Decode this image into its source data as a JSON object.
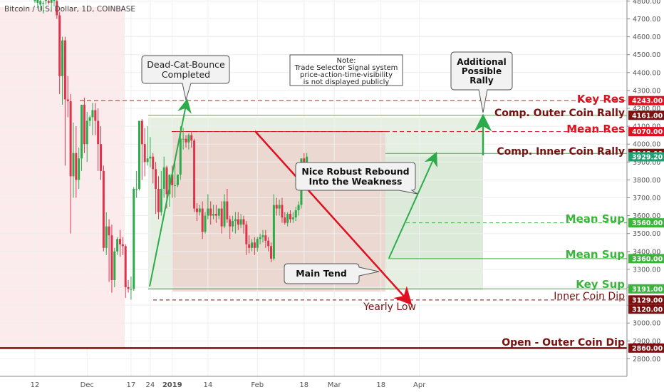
{
  "header": {
    "title": "Bitcoin / U.S. Dollar, 1D, COINBASE"
  },
  "chart_data": {
    "type": "candlestick",
    "ylim": [
      2700,
      4830
    ],
    "y_ticks": [
      2800,
      2900,
      3000,
      3100,
      3200,
      3300,
      3400,
      3500,
      3600,
      3700,
      3800,
      3900,
      4000,
      4100,
      4200,
      4300,
      4400,
      4500,
      4600,
      4700,
      4800
    ],
    "y_tick_labels": [
      "2800.00",
      "2900.00",
      "3000.00",
      "3100.00",
      "3200.00",
      "3300.00",
      "3400.00",
      "3500.00",
      "3600.00",
      "3700.00",
      "3800.00",
      "3900.00",
      "4000.00",
      "4100.00",
      "4200.00",
      "4300.00",
      "4400.00",
      "4500.00",
      "4600.00",
      "4700.00",
      "4800.00"
    ],
    "x_ticks": [
      {
        "label": "12",
        "day": 0
      },
      {
        "label": "Dec",
        "day": 19
      },
      {
        "label": "17",
        "day": 35
      },
      {
        "label": "24",
        "day": 42
      },
      {
        "label": "2019",
        "day": 50
      },
      {
        "label": "14",
        "day": 63
      },
      {
        "label": "Feb",
        "day": 81
      },
      {
        "label": "18",
        "day": 98
      },
      {
        "label": "Mar",
        "day": 109
      },
      {
        "label": "18",
        "day": 126
      },
      {
        "label": "Apr",
        "day": 140
      }
    ],
    "candles": [
      [
        0,
        4800,
        4830,
        4820,
        4790
      ],
      [
        1,
        4790,
        4830,
        4810,
        4760
      ],
      [
        2,
        4780,
        4820,
        4800,
        4750
      ],
      [
        3,
        4790,
        4800,
        4790,
        4730
      ],
      [
        4,
        4800,
        4830,
        4810,
        4780
      ],
      [
        5,
        4800,
        4820,
        4790,
        4780
      ],
      [
        6,
        4790,
        4820,
        4810,
        4740
      ],
      [
        7,
        4800,
        4830,
        4810,
        4770
      ],
      [
        8,
        4800,
        4820,
        4720,
        4700
      ],
      [
        9,
        4720,
        4740,
        4380,
        4280
      ],
      [
        10,
        4380,
        4600,
        4580,
        4220
      ],
      [
        11,
        4580,
        4600,
        4250,
        3880
      ],
      [
        12,
        4250,
        4380,
        4240,
        4150
      ],
      [
        13,
        4240,
        4280,
        3820,
        3500
      ],
      [
        14,
        3820,
        4120,
        3950,
        3700
      ],
      [
        15,
        3950,
        4100,
        3800,
        3700
      ],
      [
        16,
        3800,
        3980,
        3920,
        3750
      ],
      [
        17,
        3920,
        4180,
        4220,
        3850
      ],
      [
        18,
        4220,
        4260,
        4000,
        3950
      ],
      [
        19,
        4000,
        4180,
        4130,
        3900
      ],
      [
        20,
        4130,
        4160,
        4150,
        4100
      ],
      [
        21,
        4150,
        4230,
        4190,
        4050
      ],
      [
        22,
        4190,
        4230,
        4130,
        4050
      ],
      [
        23,
        4130,
        4200,
        4000,
        3850
      ],
      [
        24,
        4000,
        4100,
        3850,
        3800
      ],
      [
        25,
        3850,
        3880,
        3420,
        3400
      ],
      [
        26,
        3420,
        3620,
        3540,
        3380
      ],
      [
        27,
        3540,
        3580,
        3490,
        3230
      ],
      [
        28,
        3490,
        3550,
        3240,
        3170
      ],
      [
        29,
        3240,
        3420,
        3400,
        3200
      ],
      [
        30,
        3400,
        3480,
        3470,
        3380
      ],
      [
        31,
        3470,
        3520,
        3440,
        3370
      ],
      [
        32,
        3440,
        3480,
        3430,
        3380
      ],
      [
        33,
        3430,
        3440,
        3200,
        3140
      ],
      [
        34,
        3200,
        3240,
        3190,
        3170
      ],
      [
        35,
        3190,
        3260,
        3190,
        3130
      ],
      [
        36,
        3190,
        3760,
        3750,
        3180
      ],
      [
        37,
        3750,
        3850,
        3750,
        3700
      ],
      [
        38,
        3750,
        4120,
        4130,
        3740
      ],
      [
        39,
        4130,
        4140,
        4000,
        3800
      ],
      [
        40,
        4000,
        4090,
        3900,
        3820
      ],
      [
        41,
        3900,
        4100,
        3920,
        3880
      ],
      [
        42,
        3920,
        4040,
        3930,
        3870
      ],
      [
        43,
        3930,
        3950,
        3860,
        3780
      ],
      [
        44,
        3860,
        3900,
        3750,
        3610
      ],
      [
        45,
        3750,
        3820,
        3620,
        3580
      ],
      [
        46,
        3620,
        3850,
        3750,
        3600
      ],
      [
        47,
        3750,
        3930,
        3870,
        3700
      ],
      [
        48,
        3870,
        3880,
        3720,
        3640
      ],
      [
        49,
        3720,
        3830,
        3830,
        3650
      ],
      [
        50,
        3830,
        3880,
        3770,
        3700
      ],
      [
        51,
        3770,
        3900,
        3770,
        3700
      ],
      [
        52,
        3770,
        3830,
        3830,
        3760
      ],
      [
        53,
        3830,
        4100,
        4030,
        3800
      ],
      [
        54,
        4030,
        4090,
        4030,
        3970
      ],
      [
        55,
        4030,
        4050,
        4010,
        3980
      ],
      [
        56,
        4010,
        4060,
        4050,
        3970
      ],
      [
        57,
        4050,
        4070,
        4020,
        3980
      ],
      [
        58,
        4020,
        4030,
        3640,
        3620
      ],
      [
        59,
        3640,
        3670,
        3620,
        3570
      ],
      [
        60,
        3620,
        3660,
        3640,
        3600
      ],
      [
        61,
        3640,
        3680,
        3510,
        3470
      ],
      [
        62,
        3510,
        3620,
        3600,
        3500
      ],
      [
        63,
        3600,
        3720,
        3640,
        3580
      ],
      [
        64,
        3640,
        3680,
        3600,
        3550
      ],
      [
        65,
        3600,
        3660,
        3610,
        3580
      ],
      [
        66,
        3610,
        3660,
        3600,
        3560
      ],
      [
        67,
        3600,
        3640,
        3640,
        3580
      ],
      [
        68,
        3640,
        3680,
        3540,
        3500
      ],
      [
        69,
        3540,
        3720,
        3680,
        3530
      ],
      [
        70,
        3680,
        3750,
        3580,
        3560
      ],
      [
        71,
        3580,
        3600,
        3540,
        3470
      ],
      [
        72,
        3540,
        3600,
        3570,
        3510
      ],
      [
        73,
        3570,
        3620,
        3580,
        3500
      ],
      [
        74,
        3580,
        3620,
        3550,
        3520
      ],
      [
        75,
        3550,
        3610,
        3580,
        3530
      ],
      [
        76,
        3580,
        3600,
        3550,
        3500
      ],
      [
        77,
        3550,
        3570,
        3440,
        3380
      ],
      [
        78,
        3440,
        3490,
        3420,
        3390
      ],
      [
        79,
        3420,
        3470,
        3450,
        3400
      ],
      [
        80,
        3450,
        3480,
        3420,
        3380
      ],
      [
        81,
        3420,
        3480,
        3470,
        3400
      ],
      [
        82,
        3470,
        3500,
        3480,
        3440
      ],
      [
        83,
        3480,
        3520,
        3490,
        3450
      ],
      [
        84,
        3490,
        3520,
        3460,
        3420
      ],
      [
        85,
        3460,
        3480,
        3430,
        3400
      ],
      [
        86,
        3430,
        3450,
        3360,
        3340
      ],
      [
        87,
        3360,
        3720,
        3660,
        3350
      ],
      [
        88,
        3660,
        3700,
        3640,
        3600
      ],
      [
        89,
        3640,
        3690,
        3660,
        3600
      ],
      [
        90,
        3660,
        3700,
        3590,
        3560
      ],
      [
        91,
        3590,
        3620,
        3560,
        3550
      ],
      [
        92,
        3560,
        3620,
        3610,
        3540
      ],
      [
        93,
        3610,
        3630,
        3580,
        3560
      ],
      [
        94,
        3580,
        3620,
        3590,
        3560
      ],
      [
        95,
        3590,
        3650,
        3630,
        3570
      ],
      [
        96,
        3630,
        3680,
        3660,
        3600
      ],
      [
        97,
        3660,
        3920,
        3920,
        3640
      ],
      [
        98,
        3920,
        3950,
        3900,
        3860
      ],
      [
        99,
        3900,
        3950,
        3930,
        3880
      ]
    ]
  },
  "levels": {
    "key_res": {
      "label": "Key Res",
      "price_label": "4243.00",
      "value": 4243
    },
    "outer_rally": {
      "label": "Comp. Outer Coin Rally",
      "price_label": "4161.00",
      "value": 4161
    },
    "mean_res": {
      "label": "Mean Res",
      "price_label": "4070.00",
      "value": 4070
    },
    "inner_rally": {
      "label": "Comp. Inner Coin Rally",
      "price_label": "3948.00",
      "value": 3948
    },
    "current": {
      "price_label": "3929.20",
      "value": 3929.2
    },
    "mean_sup_1": {
      "label": "Mean Sup",
      "price_label": "3560.00",
      "value": 3560
    },
    "mean_sup_2": {
      "label": "Mean Sup",
      "price_label": "3360.00",
      "value": 3360
    },
    "key_sup": {
      "label": "Key Sup",
      "price_label": "3191.00",
      "value": 3191
    },
    "inner_dip": {
      "label": "Inner Coin Dip",
      "price_label": "3129.00",
      "value": 3129
    },
    "yearly_low": {
      "label": "Yearly Low",
      "price_label": "3120.00",
      "value": 3120
    },
    "outer_dip": {
      "label": "Open - Outer Coin Dip",
      "price_label": "2860.00",
      "value": 2860
    }
  },
  "annotations": {
    "dead_cat": [
      "Dead-Cat-Bounce",
      "Completed"
    ],
    "note": [
      "Note:",
      "Trade Selector Signal system",
      "price-action-time-visibility",
      "is not displayed publicly"
    ],
    "additional": [
      "Additional",
      "Possible",
      "Rally"
    ],
    "rebound": [
      "Nice Robust Rebound",
      "Into the Weakness"
    ],
    "main_tend": "Main Tend"
  },
  "colors": {
    "bull": "#2cab4a",
    "bear": "#e0334b",
    "res_red": "#e01020",
    "dark_red": "#7a1010",
    "support_green": "#3ab43a",
    "current_green": "#1e9e6e",
    "axis_text": "#555555"
  }
}
